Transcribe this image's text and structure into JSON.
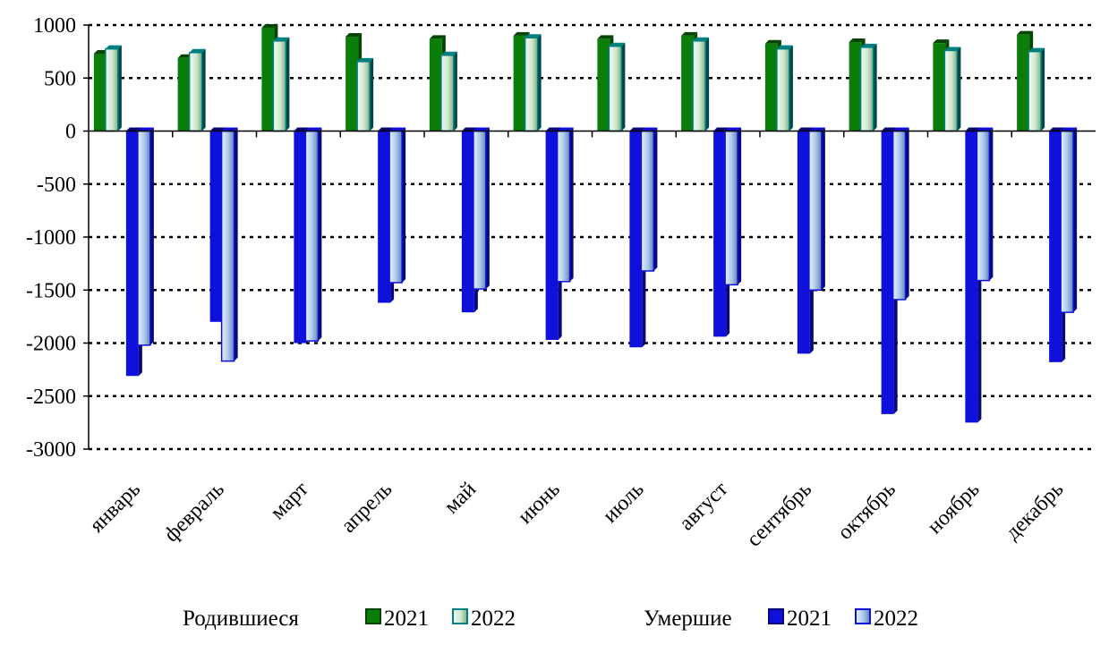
{
  "chart_data": {
    "type": "bar",
    "title": "",
    "xlabel": "",
    "ylabel": "",
    "categories": [
      "январь",
      "февраль",
      "март",
      "апрель",
      "май",
      "июнь",
      "июль",
      "август",
      "сентябрь",
      "октябрь",
      "ноябрь",
      "декабрь"
    ],
    "ylim": [
      -3000,
      1000
    ],
    "yticks": [
      1000,
      500,
      0,
      -500,
      -1000,
      -1500,
      -2000,
      -2500,
      -3000
    ],
    "ytick_labels": [
      "1000",
      "500",
      "0",
      "-500",
      "-1000",
      "-1500",
      "-2000",
      "-2500",
      "-3000"
    ],
    "grid": true,
    "grid_style": "dotted",
    "legend_position": "bottom",
    "legend_groups": [
      {
        "label": "Родившиеся",
        "series": [
          0,
          1
        ]
      },
      {
        "label": "Умершие",
        "series": [
          2,
          3
        ]
      }
    ],
    "series": [
      {
        "name": "2021",
        "group": "Родившиеся",
        "color": "#0a7d0a",
        "style": "solid",
        "values": [
          730,
          690,
          975,
          890,
          870,
          900,
          870,
          900,
          825,
          840,
          830,
          910
        ]
      },
      {
        "name": "2022",
        "group": "Родившиеся",
        "color": "#cfe8cf",
        "edge": "#008080",
        "style": "gradient",
        "values": [
          775,
          740,
          850,
          655,
          715,
          880,
          800,
          850,
          775,
          790,
          760,
          750
        ]
      },
      {
        "name": "2021",
        "group": "Умершие",
        "color": "#1010dd",
        "style": "solid",
        "values": [
          -2310,
          -1800,
          -2000,
          -1620,
          -1710,
          -1970,
          -2040,
          -1940,
          -2100,
          -2670,
          -2750,
          -2180
        ]
      },
      {
        "name": "2022",
        "group": "Умершие",
        "color": "#9fbfe6",
        "edge": "#1010dd",
        "style": "gradient",
        "values": [
          -2020,
          -2170,
          -1980,
          -1430,
          -1490,
          -1420,
          -1320,
          -1450,
          -1500,
          -1590,
          -1410,
          -1710
        ]
      }
    ]
  }
}
